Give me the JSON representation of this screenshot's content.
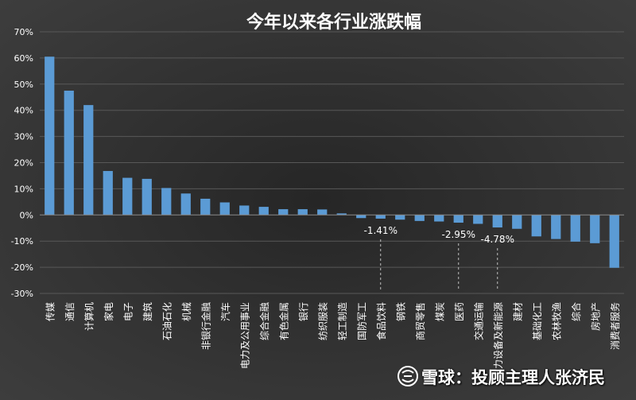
{
  "chart_data": {
    "type": "bar",
    "title": "今年以来各行业涨跌幅",
    "xlabel": "",
    "ylabel": "",
    "ylim": [
      -30,
      70
    ],
    "yticks": [
      70,
      60,
      50,
      40,
      30,
      20,
      10,
      0,
      -10,
      -20,
      -30
    ],
    "ytick_suffix": "%",
    "grid": true,
    "legend": "none",
    "categories": [
      "传媒",
      "通信",
      "计算机",
      "家电",
      "电子",
      "建筑",
      "石油石化",
      "机械",
      "非银行金融",
      "汽车",
      "电力及公用事业",
      "综合金融",
      "有色金属",
      "银行",
      "纺织服装",
      "轻工制造",
      "国防军工",
      "食品饮料",
      "钢铁",
      "商贸零售",
      "煤炭",
      "医药",
      "交通运输",
      "电力设备及新能源",
      "建材",
      "基础化工",
      "农林牧渔",
      "综合",
      "房地产",
      "消费者服务"
    ],
    "values": [
      60.5,
      47.5,
      42,
      16.8,
      14.2,
      13.8,
      10.3,
      8.2,
      6.2,
      4.8,
      3.6,
      3.1,
      2.2,
      2.2,
      2.1,
      0.6,
      -1.2,
      -1.41,
      -1.8,
      -2.3,
      -2.5,
      -2.95,
      -3.4,
      -4.78,
      -5.3,
      -8.2,
      -9.2,
      -10.2,
      -10.8,
      -20.2
    ],
    "annotations": [
      {
        "category": "食品饮料",
        "label": "-1.41%"
      },
      {
        "category": "医药",
        "label": "-2.95%"
      },
      {
        "category": "电力设备及新能源",
        "label": "-4.78%"
      }
    ],
    "colors": {
      "bar": "#5b9bd5",
      "background_outer": "#3d3d3d",
      "background_inner": "#262626",
      "grid": "#585858",
      "text": "#ffffff",
      "annotation_line": "#bfbfbf"
    }
  },
  "watermark": {
    "icon": "snowball-logo-icon",
    "text": "雪球：投顾主理人张济民"
  }
}
